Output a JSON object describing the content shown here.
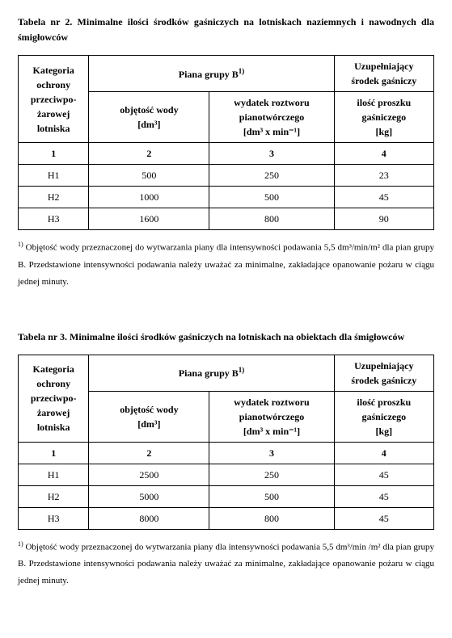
{
  "tableA": {
    "title": "Tabela nr 2. Minimalne ilości środków gaśniczych na lotniskach naziemnych i nawodnych dla śmigłowców",
    "head_cat": "Kategoria ochrony przeciwpo-żarowej lotniska",
    "head_piana": "Piana grupy B",
    "head_vol_l1": "objętość wody",
    "head_vol_l2": "[dm³]",
    "head_wyd_l1": "wydatek roztworu",
    "head_wyd_l2": "pianotwórczego",
    "head_wyd_l3": "[dm³ x min⁻¹]",
    "head_uzup_l1": "Uzupełniający",
    "head_uzup_l2": "środek gaśniczy",
    "head_il_l1": "ilość proszku",
    "head_il_l2": "gaśniczego",
    "head_il_l3": "[kg]",
    "num1": "1",
    "num2": "2",
    "num3": "3",
    "num4": "4",
    "r1c1": "H1",
    "r1c2": "500",
    "r1c3": "250",
    "r1c4": "23",
    "r2c1": "H2",
    "r2c2": "1000",
    "r2c3": "500",
    "r2c4": "45",
    "r3c1": "H3",
    "r3c2": "1600",
    "r3c3": "800",
    "r3c4": "90",
    "footnote": "Objętość wody przeznaczonej do wytwarzania piany dla intensywności podawania 5,5 dm³/min/m² dla pian grupy B. Przedstawione intensywności podawania należy uważać za minimalne, zakładające opanowanie pożaru w ciągu jednej minuty."
  },
  "tableB": {
    "title": "Tabela nr 3. Minimalne ilości środków gaśniczych na lotniskach na obiektach dla śmigłowców",
    "r1c1": "H1",
    "r1c2": "2500",
    "r1c3": "250",
    "r1c4": "45",
    "r2c1": "H2",
    "r2c2": "5000",
    "r2c3": "500",
    "r2c4": "45",
    "r3c1": "H3",
    "r3c2": "8000",
    "r3c3": "800",
    "r3c4": "45",
    "footnote": "Objętość wody przeznaczonej do wytwarzania piany dla intensywności podawania 5,5 dm³/min /m² dla pian grupy B. Przedstawione intensywności podawania należy uważać za minimalne, zakładające opanowanie pożaru w ciągu jednej minuty."
  }
}
